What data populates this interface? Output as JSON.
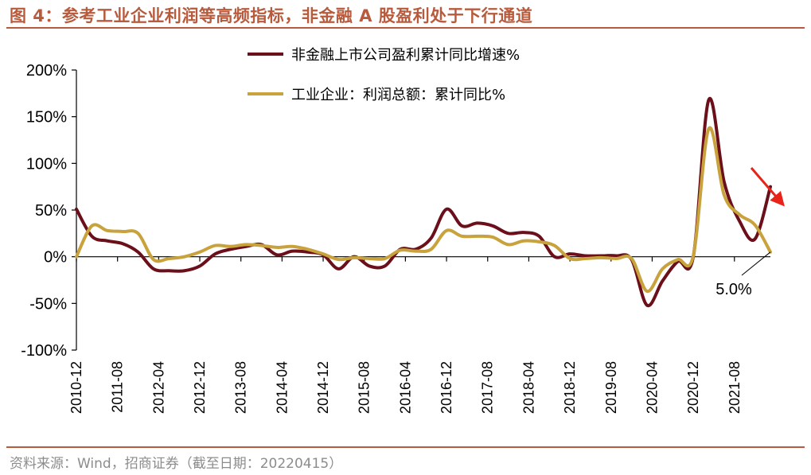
{
  "header": {
    "title": "图 4：参考工业企业利润等高频指标，非金融 A 股盈利处于下行通道"
  },
  "footer": {
    "source": "资料来源：Wind，招商证券（截至日期：20220415）"
  },
  "colors": {
    "title": "#b85a3c",
    "series_a": "#6b0f1a",
    "series_b": "#c8a23c",
    "arrow": "#e8231a"
  },
  "chart_data": {
    "type": "line",
    "ylim": [
      -100,
      200
    ],
    "yticks": [
      -100,
      -50,
      0,
      50,
      100,
      150,
      200
    ],
    "ytick_labels": [
      "-100%",
      "-50%",
      "0%",
      "50%",
      "100%",
      "150%",
      "200%"
    ],
    "x_tick_labels": [
      "2010-12",
      "2011-08",
      "2012-04",
      "2012-12",
      "2013-08",
      "2014-04",
      "2014-12",
      "2015-08",
      "2016-04",
      "2016-12",
      "2017-08",
      "2018-04",
      "2018-12",
      "2019-08",
      "2020-04",
      "2020-12",
      "2021-08"
    ],
    "legend_position": "top-right",
    "annotation": "5.0%",
    "series": [
      {
        "name": "非金融上市公司盈利累计同比增速%",
        "points": [
          [
            "2010-12",
            51
          ],
          [
            "2011-03",
            22
          ],
          [
            "2011-06",
            17
          ],
          [
            "2011-09",
            14
          ],
          [
            "2011-12",
            5
          ],
          [
            "2012-03",
            -13
          ],
          [
            "2012-06",
            -15
          ],
          [
            "2012-09",
            -15
          ],
          [
            "2012-12",
            -10
          ],
          [
            "2013-03",
            3
          ],
          [
            "2013-06",
            8
          ],
          [
            "2013-09",
            11
          ],
          [
            "2013-12",
            13
          ],
          [
            "2014-03",
            2
          ],
          [
            "2014-06",
            6
          ],
          [
            "2014-09",
            5
          ],
          [
            "2014-12",
            2
          ],
          [
            "2015-03",
            -13
          ],
          [
            "2015-06",
            0
          ],
          [
            "2015-09",
            -10
          ],
          [
            "2015-12",
            -10
          ],
          [
            "2016-03",
            8
          ],
          [
            "2016-06",
            8
          ],
          [
            "2016-09",
            20
          ],
          [
            "2016-12",
            51
          ],
          [
            "2017-03",
            33
          ],
          [
            "2017-06",
            36
          ],
          [
            "2017-09",
            33
          ],
          [
            "2017-12",
            25
          ],
          [
            "2018-03",
            26
          ],
          [
            "2018-06",
            22
          ],
          [
            "2018-09",
            0
          ],
          [
            "2018-12",
            3
          ],
          [
            "2019-03",
            1
          ],
          [
            "2019-06",
            1
          ],
          [
            "2019-09",
            1
          ],
          [
            "2019-12",
            -3
          ],
          [
            "2020-03",
            -52
          ],
          [
            "2020-06",
            -26
          ],
          [
            "2020-09",
            -5
          ],
          [
            "2020-12",
            0
          ],
          [
            "2021-03",
            168
          ],
          [
            "2021-06",
            80
          ],
          [
            "2021-09",
            38
          ],
          [
            "2021-12",
            19
          ],
          [
            "2022-03",
            75
          ]
        ]
      },
      {
        "name": "工业企业：利润总额：累计同比%",
        "points": [
          [
            "2010-12",
            0
          ],
          [
            "2011-03",
            33
          ],
          [
            "2011-06",
            28
          ],
          [
            "2011-09",
            27
          ],
          [
            "2011-12",
            25
          ],
          [
            "2012-03",
            -3
          ],
          [
            "2012-06",
            -2
          ],
          [
            "2012-09",
            0
          ],
          [
            "2012-12",
            5
          ],
          [
            "2013-03",
            12
          ],
          [
            "2013-06",
            11
          ],
          [
            "2013-09",
            13
          ],
          [
            "2013-12",
            12
          ],
          [
            "2014-03",
            10
          ],
          [
            "2014-06",
            11
          ],
          [
            "2014-09",
            8
          ],
          [
            "2014-12",
            3
          ],
          [
            "2015-03",
            -3
          ],
          [
            "2015-06",
            -1
          ],
          [
            "2015-09",
            -2
          ],
          [
            "2015-12",
            -2
          ],
          [
            "2016-03",
            7
          ],
          [
            "2016-06",
            6
          ],
          [
            "2016-09",
            8
          ],
          [
            "2016-12",
            28
          ],
          [
            "2017-03",
            22
          ],
          [
            "2017-06",
            22
          ],
          [
            "2017-09",
            21
          ],
          [
            "2017-12",
            13
          ],
          [
            "2018-03",
            17
          ],
          [
            "2018-06",
            16
          ],
          [
            "2018-09",
            12
          ],
          [
            "2018-12",
            -2
          ],
          [
            "2019-03",
            -2
          ],
          [
            "2019-06",
            -1
          ],
          [
            "2019-09",
            -2
          ],
          [
            "2019-12",
            -2
          ],
          [
            "2020-03",
            -37
          ],
          [
            "2020-06",
            -13
          ],
          [
            "2020-09",
            -3
          ],
          [
            "2020-12",
            1
          ],
          [
            "2021-03",
            137
          ],
          [
            "2021-06",
            66
          ],
          [
            "2021-09",
            45
          ],
          [
            "2021-12",
            34
          ],
          [
            "2022-03",
            5
          ]
        ]
      }
    ]
  }
}
